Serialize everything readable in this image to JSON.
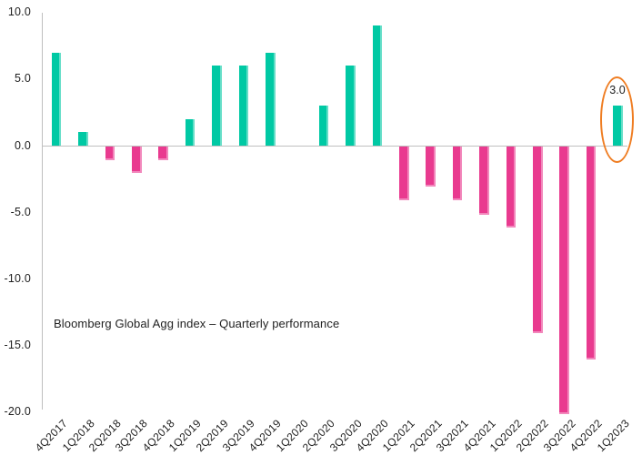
{
  "page": {
    "background_color": "#FFFFFF"
  },
  "chart_data": {
    "type": "bar",
    "title": "Bloomberg Global Agg index – Quarterly performance",
    "categories": [
      "4Q2017",
      "1Q2018",
      "2Q2018",
      "3Q2018",
      "4Q2018",
      "1Q2019",
      "2Q2019",
      "3Q2019",
      "4Q2019",
      "1Q2020",
      "2Q2020",
      "3Q2020",
      "4Q2020",
      "1Q2021",
      "2Q2021",
      "3Q2021",
      "4Q2021",
      "1Q2022",
      "2Q2022",
      "3Q2022",
      "4Q2022",
      "1Q2023"
    ],
    "values": [
      7.0,
      1.0,
      -1.0,
      -2.0,
      -1.0,
      2.0,
      6.0,
      6.0,
      7.0,
      0.0,
      3.0,
      6.0,
      9.0,
      -4.0,
      -3.0,
      -4.0,
      -5.1,
      -6.1,
      -14.0,
      -20.1,
      -16.0,
      3.0
    ],
    "yticks": [
      10.0,
      5.0,
      0.0,
      -5.0,
      -10.0,
      -15.0,
      -20.0
    ],
    "ylim": [
      -20.0,
      10.0
    ],
    "xlabel": "",
    "ylabel": "",
    "grid": false,
    "legend": false,
    "x_tick_rotation_degrees": 45,
    "bar_colors": {
      "positive": "#00C9A4",
      "negative": "#E93A8F"
    },
    "axis_color": "#BFBFBF",
    "text_color": "#1F1F1F",
    "annotation": {
      "text": "3.0",
      "target_category": "1Q2023",
      "shape": "ellipse",
      "color": "#EF7D22"
    }
  }
}
